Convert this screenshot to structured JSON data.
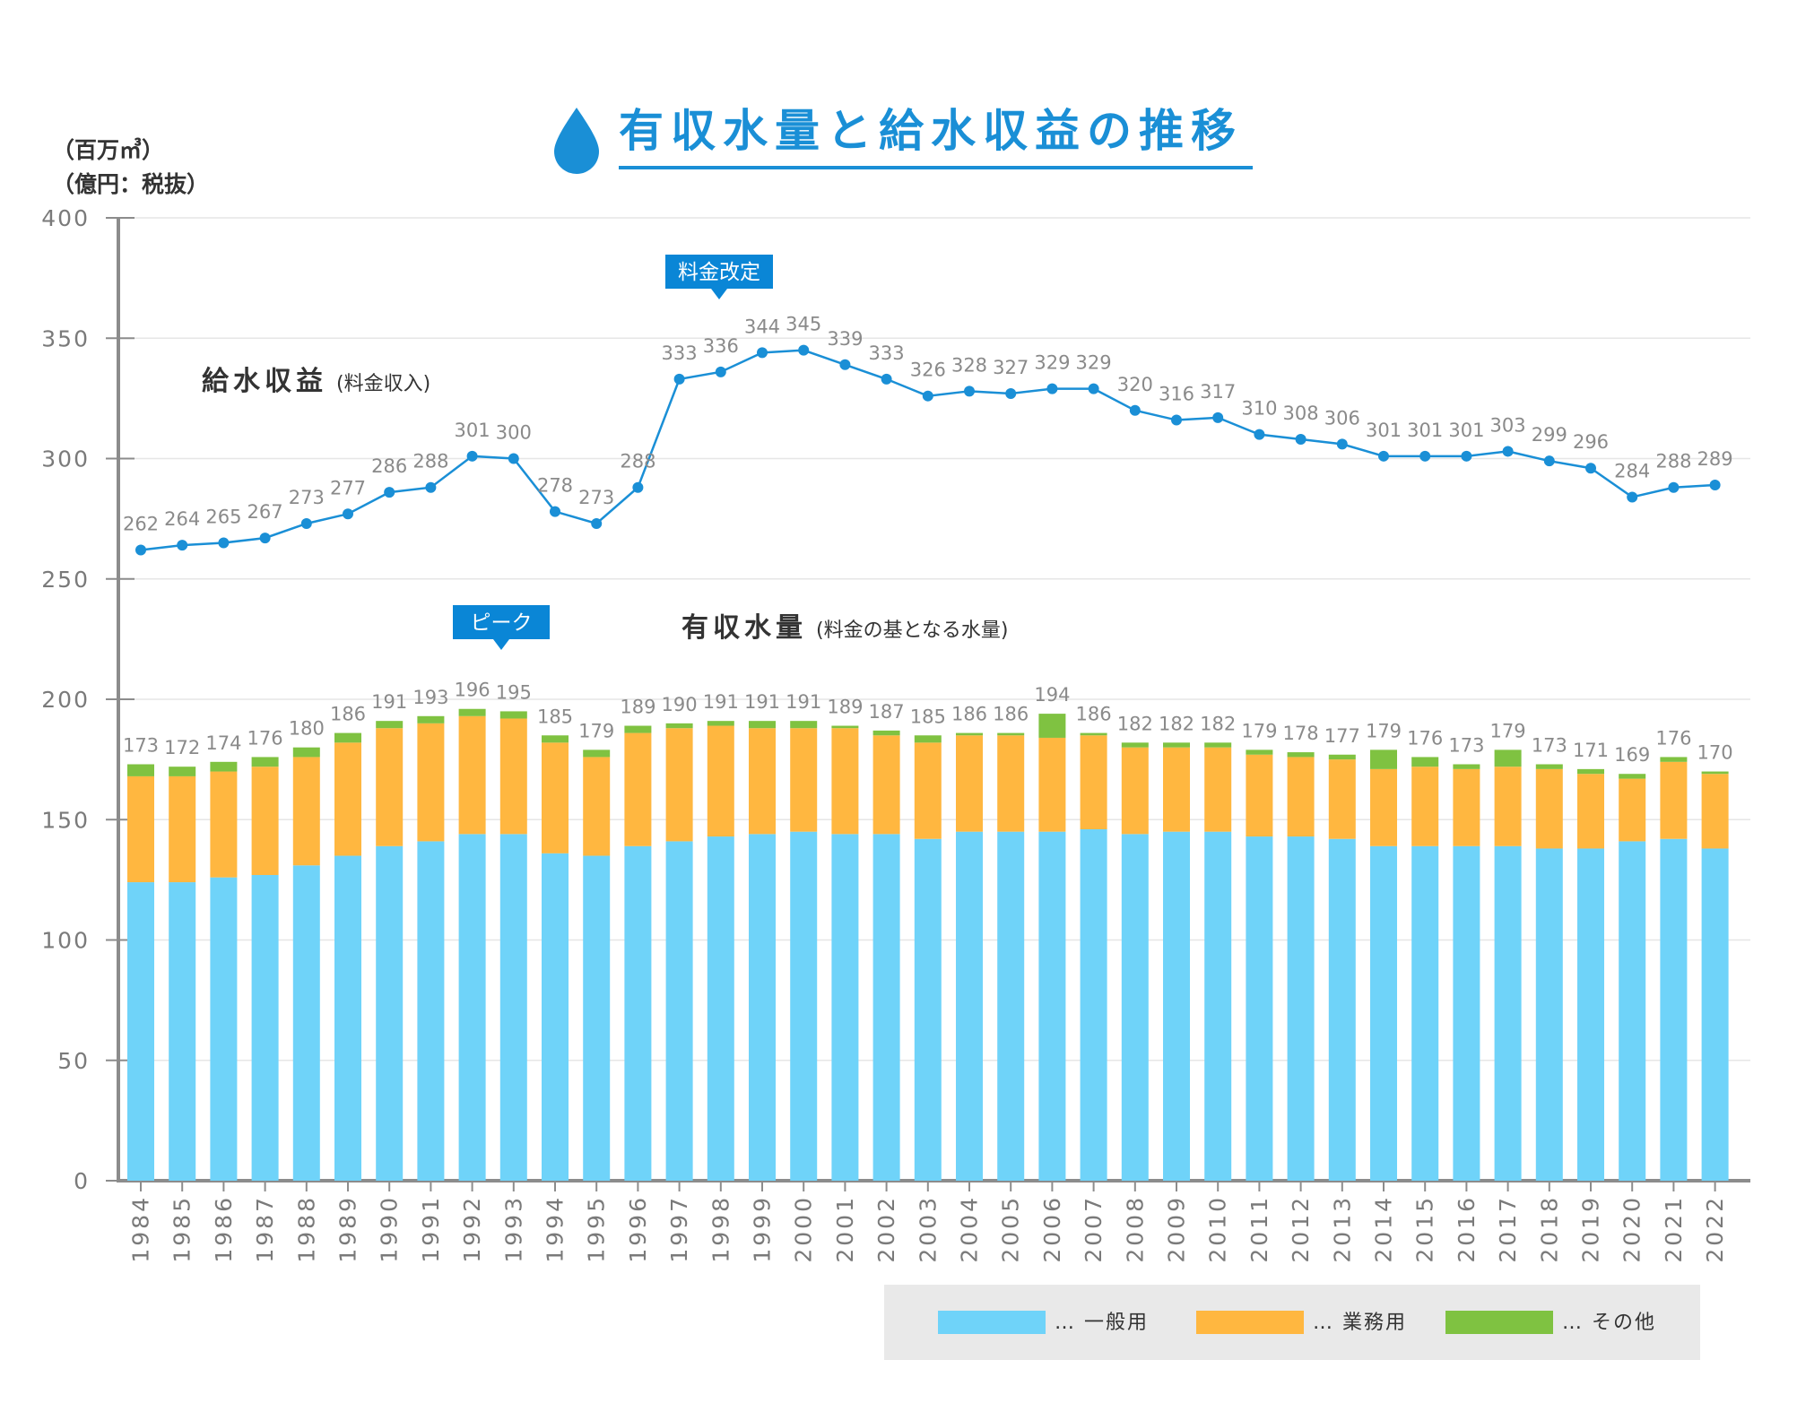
{
  "title": "有収水量と給水収益の推移",
  "units": {
    "primary": "（百万㎥）",
    "secondary": "（億円：税抜）"
  },
  "colors": {
    "title": "#1a8fd6",
    "general": "#6fd3f9",
    "business": "#ffb740",
    "other": "#7fc241",
    "line": "#1a8fd6",
    "axis": "#8c8c8c",
    "grid": "#e6e6e6",
    "callout": "#0a86d6",
    "legend_bg": "#e9e9e9"
  },
  "series_labels": {
    "revenue": {
      "head": "給水収益",
      "sub": "(料金収入)"
    },
    "volume": {
      "head": "有収水量",
      "sub": "(料金の基となる水量)"
    }
  },
  "callouts": {
    "rate_revision": {
      "text": "料金改定",
      "year": 1997
    },
    "peak": {
      "text": "ピーク",
      "year": 1993
    }
  },
  "legend": {
    "general": "… 一般用",
    "business": "… 業務用",
    "other": "… その他"
  },
  "chart_data": {
    "type": "bar",
    "title": "有収水量と給水収益の推移",
    "xlabel": "",
    "ylabel": "（百万㎥）（億円：税抜）",
    "ylim": [
      0,
      400
    ],
    "yticks": [
      0,
      50,
      100,
      150,
      200,
      250,
      300,
      350,
      400
    ],
    "grid": true,
    "legend_position": "bottom-right",
    "categories": [
      "1984",
      "1985",
      "1986",
      "1987",
      "1988",
      "1989",
      "1990",
      "1991",
      "1992",
      "1993",
      "1994",
      "1995",
      "1996",
      "1997",
      "1998",
      "1999",
      "2000",
      "2001",
      "2002",
      "2003",
      "2004",
      "2005",
      "2006",
      "2007",
      "2008",
      "2009",
      "2010",
      "2011",
      "2012",
      "2013",
      "2014",
      "2015",
      "2016",
      "2017",
      "2018",
      "2019",
      "2020",
      "2021",
      "2022"
    ],
    "stacked_series": [
      {
        "name": "一般用",
        "values": [
          124,
          124,
          126,
          127,
          131,
          135,
          139,
          141,
          144,
          144,
          136,
          135,
          139,
          141,
          143,
          144,
          145,
          144,
          144,
          142,
          145,
          145,
          145,
          146,
          144,
          145,
          145,
          143,
          143,
          142,
          139,
          139,
          139,
          139,
          138,
          138,
          141,
          142,
          138
        ]
      },
      {
        "name": "業務用",
        "values": [
          44,
          44,
          44,
          45,
          45,
          47,
          49,
          49,
          49,
          48,
          46,
          41,
          47,
          47,
          46,
          44,
          43,
          44,
          41,
          40,
          40,
          40,
          39,
          39,
          36,
          35,
          35,
          34,
          33,
          33,
          32,
          33,
          32,
          33,
          33,
          31,
          26,
          32,
          31
        ]
      },
      {
        "name": "その他",
        "values": [
          5,
          4,
          4,
          4,
          4,
          4,
          3,
          3,
          3,
          3,
          3,
          3,
          3,
          2,
          2,
          3,
          3,
          1,
          2,
          3,
          1,
          1,
          10,
          1,
          2,
          2,
          2,
          2,
          2,
          2,
          8,
          4,
          2,
          7,
          2,
          2,
          2,
          2,
          1
        ]
      }
    ],
    "bar_totals": [
      173,
      172,
      174,
      176,
      180,
      186,
      191,
      193,
      196,
      195,
      185,
      179,
      189,
      190,
      191,
      191,
      191,
      189,
      187,
      185,
      186,
      186,
      194,
      186,
      182,
      182,
      182,
      179,
      178,
      177,
      179,
      176,
      173,
      179,
      173,
      171,
      169,
      176,
      170
    ],
    "line_series": {
      "name": "給水収益",
      "values": [
        262,
        264,
        265,
        267,
        273,
        277,
        286,
        288,
        301,
        300,
        278,
        273,
        288,
        333,
        336,
        344,
        345,
        339,
        333,
        326,
        328,
        327,
        329,
        329,
        320,
        316,
        317,
        310,
        308,
        306,
        301,
        301,
        301,
        303,
        299,
        296,
        284,
        288,
        289
      ]
    }
  }
}
